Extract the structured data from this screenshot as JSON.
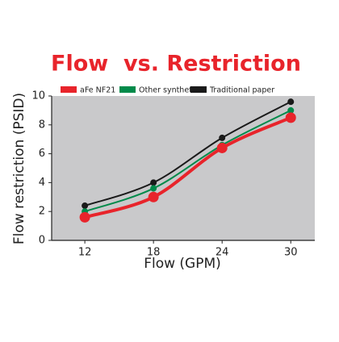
{
  "chart_data": {
    "type": "line",
    "title": "Flow  vs. Restriction",
    "x_label": "Flow (GPM)",
    "y_label": "Flow restriction (PSID)",
    "x": [
      12,
      18,
      24,
      30
    ],
    "series": [
      {
        "name": "aFe NF21",
        "color": "#e8242b",
        "values": [
          1.6,
          3.0,
          6.4,
          8.5
        ]
      },
      {
        "name": "Other synthetic",
        "color": "#008a4a",
        "values": [
          2.0,
          3.6,
          6.6,
          9.0
        ]
      },
      {
        "name": "Traditional paper",
        "color": "#1a1a1a",
        "values": [
          2.4,
          4.0,
          7.1,
          9.6
        ]
      }
    ],
    "xlim": [
      9.1,
      32.1
    ],
    "xticks": [
      12,
      18,
      24,
      30
    ],
    "ylim": [
      0,
      10
    ],
    "yticks": [
      0,
      2,
      4,
      6,
      8,
      10
    ],
    "grid": false
  }
}
